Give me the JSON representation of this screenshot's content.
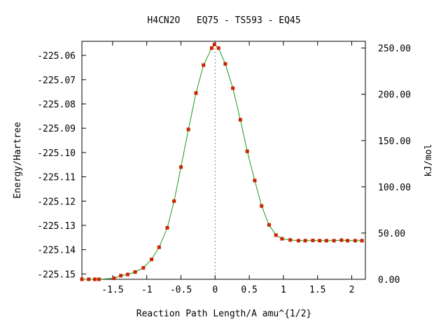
{
  "chart_data": {
    "type": "line",
    "title": "H4CN2O   EQ75 - TS593 - EQ45",
    "xlabel": "Reaction Path Length/A amu^{1/2}",
    "ylabel": "Energy/Hartree",
    "y2label": "kJ/mol",
    "xlim": [
      -1.95,
      2.2
    ],
    "ylim": [
      -225.1522,
      -225.0542
    ],
    "y2lim": [
      0,
      257.3
    ],
    "x_ticks": [
      -1.5,
      -1,
      -0.5,
      0,
      0.5,
      1,
      1.5,
      2
    ],
    "x_tick_labels": [
      "-1.5",
      "-1",
      "-0.5",
      "0",
      "0.5",
      "1",
      "1.5",
      "2"
    ],
    "y_ticks": [
      -225.06,
      -225.07,
      -225.08,
      -225.09,
      -225.1,
      -225.11,
      -225.12,
      -225.13,
      -225.14,
      -225.15
    ],
    "y_tick_labels": [
      "-225.06",
      "-225.07",
      "-225.08",
      "-225.09",
      "-225.10",
      "-225.11",
      "-225.12",
      "-225.13",
      "-225.14",
      "-225.15"
    ],
    "y2_ticks": [
      0,
      50,
      100,
      150,
      200,
      250
    ],
    "y2_tick_labels": [
      "0.00",
      "50.00",
      "100.00",
      "150.00",
      "200.00",
      "250.00"
    ],
    "line_color": "#1a9a1a",
    "marker_color": "#cc2200",
    "vertical_marker_x": 0,
    "series": [
      {
        "x": [
          -1.95,
          -1.85,
          -1.76,
          -1.7,
          -1.48,
          -1.38,
          -1.28,
          -1.17,
          -1.05,
          -0.93,
          -0.82,
          -0.7,
          -0.6,
          -0.5,
          -0.39,
          -0.28,
          -0.17,
          -0.05,
          -0.01,
          0.05,
          0.15,
          0.26,
          0.37,
          0.47,
          0.58,
          0.68,
          0.79,
          0.89,
          0.98,
          1.1,
          1.22,
          1.32,
          1.43,
          1.53,
          1.63,
          1.74,
          1.85,
          1.94,
          2.05,
          2.15
        ],
        "y": [
          -225.1522,
          -225.1522,
          -225.1522,
          -225.1522,
          -225.1518,
          -225.1507,
          -225.1502,
          -225.1492,
          -225.1475,
          -225.144,
          -225.139,
          -225.131,
          -225.12,
          -225.106,
          -225.0905,
          -225.0755,
          -225.064,
          -225.057,
          -225.0555,
          -225.057,
          -225.0635,
          -225.0735,
          -225.0865,
          -225.0995,
          -225.1115,
          -225.122,
          -225.1298,
          -225.134,
          -225.1355,
          -225.136,
          -225.1363,
          -225.1363,
          -225.1362,
          -225.1363,
          -225.1363,
          -225.1363,
          -225.1361,
          -225.1363,
          -225.1363,
          -225.1363
        ]
      }
    ]
  }
}
